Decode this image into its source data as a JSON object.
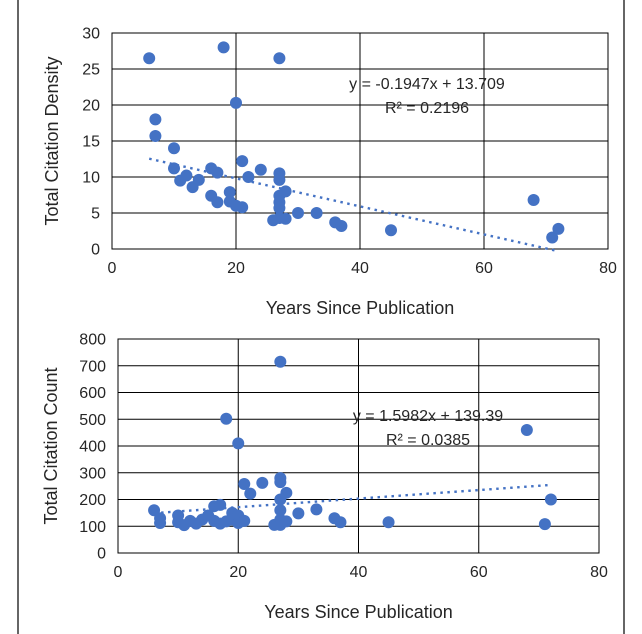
{
  "chart_data": [
    {
      "type": "scatter",
      "xlabel": "Years Since Publication",
      "ylabel": "Total Citation Density",
      "xlim": [
        0,
        80
      ],
      "ylim": [
        0,
        30
      ],
      "x_ticks": [
        "0",
        "20",
        "40",
        "60",
        "80"
      ],
      "y_ticks": [
        "0",
        "5",
        "10",
        "15",
        "20",
        "25",
        "30"
      ],
      "x_gridlines": [
        20,
        40,
        60
      ],
      "y_gridlines": [
        5,
        10,
        15,
        20,
        25,
        30
      ],
      "marker_color": "#4472C4",
      "trendline": {
        "equation": "y = -0.1947x + 13.709",
        "r_squared": "R² = 0.2196",
        "slope": -0.1947,
        "intercept": 13.709,
        "x_range": [
          6,
          72
        ]
      },
      "points": [
        {
          "x": 6,
          "y": 26.5
        },
        {
          "x": 7,
          "y": 18
        },
        {
          "x": 7,
          "y": 15.7
        },
        {
          "x": 10,
          "y": 14
        },
        {
          "x": 10,
          "y": 11.2
        },
        {
          "x": 11,
          "y": 9.5
        },
        {
          "x": 12,
          "y": 10.2
        },
        {
          "x": 13,
          "y": 8.6
        },
        {
          "x": 14,
          "y": 9.6
        },
        {
          "x": 16,
          "y": 11.2
        },
        {
          "x": 16,
          "y": 7.4
        },
        {
          "x": 17,
          "y": 10.6
        },
        {
          "x": 17,
          "y": 6.5
        },
        {
          "x": 18,
          "y": 28
        },
        {
          "x": 19,
          "y": 7.9
        },
        {
          "x": 19,
          "y": 6.6
        },
        {
          "x": 20,
          "y": 20.3
        },
        {
          "x": 20,
          "y": 6
        },
        {
          "x": 21,
          "y": 12.2
        },
        {
          "x": 21,
          "y": 5.8
        },
        {
          "x": 22,
          "y": 10
        },
        {
          "x": 24,
          "y": 11
        },
        {
          "x": 26,
          "y": 4
        },
        {
          "x": 27,
          "y": 26.5
        },
        {
          "x": 27,
          "y": 10.5
        },
        {
          "x": 27,
          "y": 9.6
        },
        {
          "x": 27,
          "y": 7.4
        },
        {
          "x": 27,
          "y": 6.5
        },
        {
          "x": 27,
          "y": 5.7
        },
        {
          "x": 27,
          "y": 4.3
        },
        {
          "x": 28,
          "y": 8
        },
        {
          "x": 28,
          "y": 4.2
        },
        {
          "x": 30,
          "y": 5
        },
        {
          "x": 33,
          "y": 5
        },
        {
          "x": 36,
          "y": 3.7
        },
        {
          "x": 37,
          "y": 3.2
        },
        {
          "x": 45,
          "y": 2.6
        },
        {
          "x": 68,
          "y": 6.8
        },
        {
          "x": 71,
          "y": 1.6
        },
        {
          "x": 72,
          "y": 2.8
        }
      ]
    },
    {
      "type": "scatter",
      "xlabel": "Years Since Publication",
      "ylabel": "Total Citation Count",
      "xlim": [
        0,
        80
      ],
      "ylim": [
        0,
        800
      ],
      "x_ticks": [
        "0",
        "20",
        "40",
        "60",
        "80"
      ],
      "y_ticks": [
        "0",
        "100",
        "200",
        "300",
        "400",
        "500",
        "600",
        "700",
        "800"
      ],
      "x_gridlines": [
        20,
        40,
        60
      ],
      "y_gridlines": [
        100,
        200,
        300,
        400,
        500,
        600,
        700,
        800
      ],
      "marker_color": "#4472C4",
      "trendline": {
        "equation": "y = 1.5982x + 139.39",
        "r_squared": "R² = 0.0385",
        "slope": 1.5982,
        "intercept": 139.39,
        "x_range": [
          6,
          72
        ]
      },
      "points": [
        {
          "x": 6,
          "y": 160
        },
        {
          "x": 7,
          "y": 130
        },
        {
          "x": 7,
          "y": 112
        },
        {
          "x": 10,
          "y": 140
        },
        {
          "x": 10,
          "y": 115
        },
        {
          "x": 11,
          "y": 104
        },
        {
          "x": 12,
          "y": 120
        },
        {
          "x": 13,
          "y": 110
        },
        {
          "x": 14,
          "y": 125
        },
        {
          "x": 15,
          "y": 140
        },
        {
          "x": 16,
          "y": 175
        },
        {
          "x": 16,
          "y": 120
        },
        {
          "x": 17,
          "y": 180
        },
        {
          "x": 17,
          "y": 110
        },
        {
          "x": 18,
          "y": 502
        },
        {
          "x": 18,
          "y": 118
        },
        {
          "x": 19,
          "y": 150
        },
        {
          "x": 19,
          "y": 125
        },
        {
          "x": 20,
          "y": 410
        },
        {
          "x": 20,
          "y": 140
        },
        {
          "x": 20,
          "y": 112
        },
        {
          "x": 21,
          "y": 258
        },
        {
          "x": 21,
          "y": 120
        },
        {
          "x": 22,
          "y": 222
        },
        {
          "x": 24,
          "y": 262
        },
        {
          "x": 26,
          "y": 105
        },
        {
          "x": 27,
          "y": 715
        },
        {
          "x": 27,
          "y": 280
        },
        {
          "x": 27,
          "y": 265
        },
        {
          "x": 27,
          "y": 200
        },
        {
          "x": 27,
          "y": 160
        },
        {
          "x": 27,
          "y": 125
        },
        {
          "x": 27,
          "y": 105
        },
        {
          "x": 28,
          "y": 225
        },
        {
          "x": 28,
          "y": 118
        },
        {
          "x": 30,
          "y": 148
        },
        {
          "x": 33,
          "y": 163
        },
        {
          "x": 36,
          "y": 130
        },
        {
          "x": 37,
          "y": 115
        },
        {
          "x": 45,
          "y": 115
        },
        {
          "x": 68,
          "y": 460
        },
        {
          "x": 71,
          "y": 108
        },
        {
          "x": 72,
          "y": 200
        }
      ]
    }
  ]
}
